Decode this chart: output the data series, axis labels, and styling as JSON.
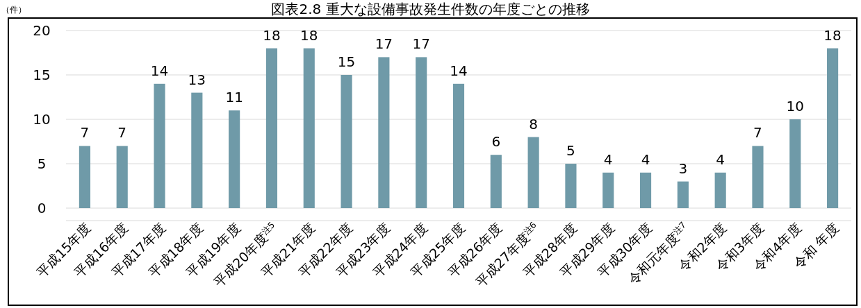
{
  "chart_data": {
    "type": "bar",
    "title": "図表2.8 重大な設備事故発生件数の年度ごとの推移",
    "ylabel": "（件）",
    "categories": [
      "平成15年度",
      "平成16年度",
      "平成17年度",
      "平成18年度",
      "平成19年度",
      "平成20年度$^{注5}$",
      "平成21年度",
      "平成22年度",
      "平成23年度",
      "平成24年度",
      "平成25年度",
      "平成26年度",
      "平成27年度$^{注6}$",
      "平成28年度",
      "平成29年度",
      "平成30年度",
      "令和元年度$^{注7}$",
      "令和2年度",
      "令和3年度",
      "令和4年度",
      "令和 年度"
    ],
    "values": [
      7,
      7,
      14,
      13,
      11,
      18,
      18,
      15,
      17,
      17,
      14,
      6,
      8,
      5,
      4,
      4,
      3,
      4,
      7,
      10,
      18
    ],
    "color": "#6f9aa8",
    "ylim": [
      0,
      20
    ],
    "yticks": [
      0,
      5,
      10,
      15,
      20
    ],
    "grid": "y",
    "data_labels": true
  }
}
